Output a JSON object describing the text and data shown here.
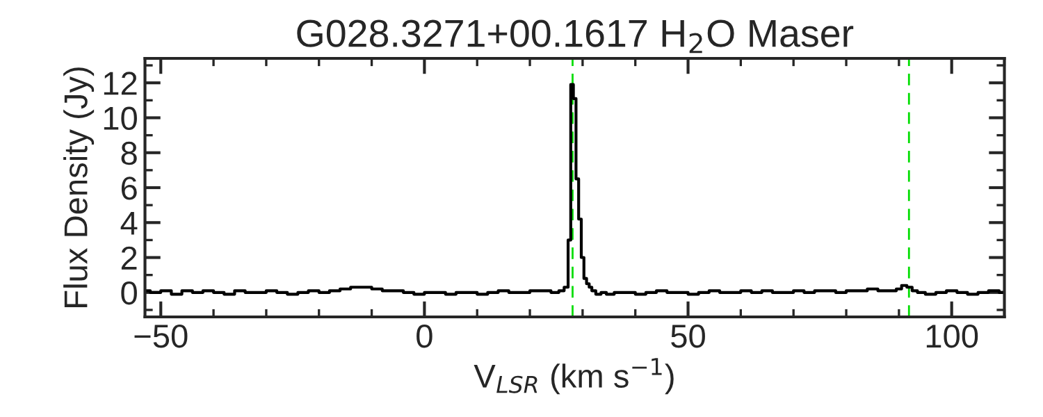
{
  "chart_data": {
    "type": "step",
    "title": "G028.3271+00.1617 H$_{2}$O Maser",
    "xlabel": "V$_{LSR}$ (km s$^{−1}$)",
    "ylabel": "Flux Density (Jy)",
    "series": [
      {
        "color": "#000000",
        "x": [
          -53,
          -51,
          -49,
          -47,
          -45,
          -43,
          -41,
          -39,
          -37,
          -35,
          -33,
          -31,
          -29,
          -27,
          -25,
          -23,
          -21,
          -19,
          -17,
          -15,
          -13,
          -11,
          -9,
          -7,
          -5,
          -3,
          -1,
          1,
          3,
          5,
          7,
          9,
          11,
          13,
          15,
          17,
          19,
          21,
          23,
          25,
          26,
          27,
          27.5,
          28,
          28.5,
          29,
          29.5,
          30,
          30.5,
          31,
          31.5,
          32,
          33,
          34,
          35,
          37,
          39,
          41,
          43,
          45,
          47,
          49,
          51,
          53,
          55,
          57,
          59,
          61,
          63,
          65,
          67,
          69,
          71,
          73,
          75,
          77,
          79,
          81,
          83,
          85,
          87,
          89,
          90,
          91,
          92,
          93,
          94,
          96,
          98,
          100,
          102,
          104,
          106,
          108,
          110
        ],
        "values": [
          0.1,
          0.0,
          0.1,
          -0.1,
          0.1,
          0.0,
          0.1,
          0.0,
          -0.1,
          0.1,
          0.0,
          0.0,
          0.1,
          0.0,
          -0.1,
          0.0,
          0.1,
          0.0,
          0.1,
          0.2,
          0.3,
          0.3,
          0.2,
          0.1,
          0.1,
          0.0,
          -0.1,
          0.0,
          0.0,
          -0.1,
          0.0,
          0.0,
          -0.1,
          0.0,
          0.1,
          0.0,
          0.0,
          0.1,
          0.1,
          0.0,
          0.1,
          0.3,
          3.0,
          11.9,
          11.1,
          6.5,
          4.2,
          2.0,
          0.8,
          0.5,
          0.3,
          0.1,
          -0.1,
          0.0,
          -0.1,
          0.0,
          0.0,
          -0.1,
          0.0,
          0.1,
          0.0,
          0.0,
          -0.1,
          0.0,
          0.1,
          0.0,
          0.0,
          0.1,
          0.0,
          0.1,
          0.0,
          0.0,
          0.1,
          0.0,
          0.1,
          0.1,
          0.0,
          0.1,
          0.1,
          0.2,
          0.1,
          0.1,
          0.2,
          0.4,
          0.3,
          0.1,
          0.0,
          -0.1,
          0.0,
          0.1,
          0.0,
          -0.1,
          0.0,
          0.1,
          0.0
        ]
      }
    ],
    "xlim": [
      -53,
      110
    ],
    "xticks": [
      {
        "value": -50,
        "label": "−50"
      },
      0,
      50,
      100
    ],
    "ylim": [
      -1.4,
      13.4
    ],
    "yticks": [
      0,
      2,
      4,
      6,
      8,
      10,
      12
    ],
    "ref_lines": [
      {
        "axis": "x",
        "value": 28.1,
        "color": "#00dd00",
        "line_style": "dashed"
      },
      {
        "axis": "x",
        "value": 91.9,
        "color": "#00dd00",
        "line_style": "dashed"
      }
    ],
    "grid": false,
    "legend": false
  }
}
